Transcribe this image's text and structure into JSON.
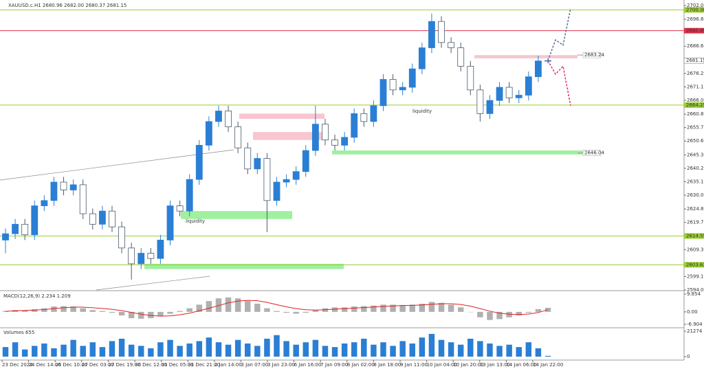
{
  "chart_data": {
    "type": "candlestick",
    "title": "XAUUSD.c.H1 2680.96 2682.00 2680.37 2681.15",
    "open": [
      2613,
      2615.4,
      2619,
      2615,
      2626,
      2628,
      2635,
      2632,
      2634,
      2623,
      2619,
      2624,
      2618,
      2610,
      2604,
      2608,
      2606,
      2613,
      2626,
      2624,
      2636,
      2649,
      2658,
      2662,
      2656,
      2648,
      2640,
      2644,
      2628,
      2635,
      2636,
      2639,
      2647,
      2657,
      2651,
      2649,
      2652,
      2661,
      2658,
      2664,
      2674,
      2670,
      2671,
      2678,
      2686,
      2696,
      2688,
      2686,
      2679,
      2670,
      2661,
      2666,
      2671,
      2667,
      2668,
      2675,
      2681
    ],
    "high": [
      2617.4,
      2621,
      2621,
      2628,
      2630,
      2637,
      2637,
      2636,
      2636,
      2625,
      2626,
      2626,
      2620,
      2612,
      2610,
      2610,
      2615,
      2628,
      2628,
      2638,
      2651,
      2660,
      2664,
      2664,
      2658,
      2650,
      2646,
      2646,
      2637,
      2638,
      2641,
      2649,
      2664,
      2659,
      2653,
      2654,
      2663,
      2663,
      2666,
      2676,
      2676,
      2673,
      2680,
      2688,
      2699,
      2698,
      2690,
      2688,
      2681,
      2672,
      2668,
      2673,
      2673,
      2670,
      2677,
      2683,
      2682
    ],
    "low": [
      2608,
      2613.4,
      2613,
      2613,
      2624,
      2626,
      2630,
      2630,
      2621,
      2617,
      2617,
      2616,
      2608,
      2598,
      2602,
      2604,
      2604,
      2611,
      2622,
      2622,
      2634,
      2647,
      2656,
      2654,
      2646,
      2638,
      2638,
      2616,
      2626,
      2633,
      2634,
      2637,
      2645,
      2649,
      2647,
      2647,
      2650,
      2656,
      2656,
      2662,
      2668,
      2668,
      2669,
      2676,
      2684,
      2686,
      2684,
      2677,
      2668,
      2658,
      2659,
      2664,
      2665,
      2665,
      2666,
      2673,
      2680
    ],
    "close": [
      2615.4,
      2619,
      2615,
      2626,
      2628,
      2635,
      2632,
      2634,
      2623,
      2619,
      2624,
      2618,
      2610,
      2604,
      2608,
      2606,
      2613,
      2626,
      2624,
      2636,
      2649,
      2658,
      2662,
      2656,
      2648,
      2640,
      2644,
      2628,
      2635,
      2636,
      2639,
      2647,
      2657,
      2651,
      2649,
      2652,
      2661,
      2658,
      2664,
      2674,
      2670,
      2671,
      2678,
      2686,
      2696,
      2688,
      2686,
      2679,
      2670,
      2661,
      2666,
      2671,
      2667,
      2668,
      2675,
      2681,
      2681.15
    ],
    "ylim": [
      2594.05,
      2702.05
    ],
    "yticks": [
      2702.05,
      2696.8,
      2686.6,
      2676.25,
      2671.15,
      2666.05,
      2660.8,
      2655.7,
      2650.6,
      2645.35,
      2640.25,
      2635.15,
      2630.05,
      2624.8,
      2619.7,
      2609.35,
      2599.15,
      2594.05
    ],
    "levels": [
      {
        "value": 2700.38,
        "color": "#9acd32"
      },
      {
        "value": 2692.49,
        "color": "#e0304a"
      },
      {
        "value": 2664.25,
        "color": "#9acd32"
      },
      {
        "value": 2614.55,
        "color": "#9acd32"
      },
      {
        "value": 2603.62,
        "color": "#9acd32"
      }
    ],
    "last": 2681.15,
    "price_notes": [
      2683.24,
      2646.04
    ],
    "zones": [
      {
        "top": 2661,
        "bottom": 2659,
        "color": "#f7c6cf"
      },
      {
        "top": 2654,
        "bottom": 2651,
        "color": "#f7c6cf"
      },
      {
        "top": 2624,
        "bottom": 2621,
        "color": "#9ff09f"
      },
      {
        "top": 2647,
        "bottom": 2645.5,
        "color": "#9ff09f"
      },
      {
        "top": 2604,
        "bottom": 2602,
        "color": "#9ff09f"
      },
      {
        "top": 2683.2,
        "bottom": 2682,
        "color": "#f7c6cf"
      }
    ],
    "annotations": [
      "liquidity",
      "liquidity"
    ],
    "forecast": [
      {
        "color": "#5a6e9e",
        "values": [
          2681.15,
          2689,
          2687,
          2701
        ]
      },
      {
        "color": "#e0306a",
        "values": [
          2681.15,
          2676,
          2679,
          2664
        ]
      }
    ],
    "time_labels": [
      "23 Dec 2024",
      "24 Dec 14:00",
      "26 Dec 10:00",
      "27 Dec 03:00",
      "27 Dec 19:00",
      "30 Dec 12:00",
      "31 Dec 05:00",
      "31 Dec 21:00",
      "2 Jan 14:00",
      "3 Jan 07:00",
      "3 Jan 23:00",
      "6 Jan 16:00",
      "7 Jan 09:00",
      "8 Jan 02:00",
      "8 Jan 18:00",
      "9 Jan 11:00",
      "10 Jan 04:00",
      "10 Jan 20:00",
      "13 Jan 13:00",
      "14 Jan 06:00",
      "14 Jan 22:00"
    ],
    "macd": {
      "label": "MACD(12,26,9) 2.234 1.209",
      "histogram": [
        0.5,
        1,
        0.8,
        1.5,
        2,
        3,
        3.2,
        3,
        2,
        1,
        0.5,
        -0.5,
        -2,
        -3.5,
        -3.8,
        -3.5,
        -2.5,
        -1,
        0.5,
        2,
        4,
        6,
        7.5,
        8,
        7.5,
        6,
        4.5,
        2,
        0.5,
        -0.5,
        -1,
        -0.5,
        1,
        2,
        2.5,
        2.5,
        3,
        3.2,
        3.5,
        4,
        4,
        3.8,
        4,
        4.5,
        5.5,
        5,
        4,
        2.5,
        0,
        -3,
        -4.5,
        -4,
        -3,
        -2,
        -0.5,
        1.5,
        2.234
      ],
      "signal": [
        0.3,
        0.6,
        0.8,
        1,
        1.3,
        1.8,
        2.3,
        2.6,
        2.6,
        2.3,
        1.9,
        1.4,
        0.7,
        -0.3,
        -1.3,
        -2,
        -2.4,
        -2.2,
        -1.6,
        -0.7,
        0.6,
        2,
        3.5,
        5,
        6,
        6.4,
        6.2,
        5.3,
        4,
        2.8,
        1.8,
        1.2,
        1,
        1.2,
        1.5,
        1.8,
        2.1,
        2.4,
        2.7,
        3,
        3.3,
        3.5,
        3.6,
        3.8,
        4.2,
        4.5,
        4.5,
        4.1,
        3.2,
        1.8,
        0.4,
        -0.7,
        -1.3,
        -1.5,
        -1.2,
        -0.4,
        1.209
      ],
      "ylim": [
        -6.904,
        9.854
      ],
      "yticks": [
        9.854,
        {
          "value": 0,
          "label": "0.00"
        },
        -6.904
      ]
    },
    "volumes": {
      "label": "Volumes 655",
      "values": [
        8000,
        12000,
        6000,
        9000,
        11000,
        7000,
        10000,
        14000,
        9000,
        12000,
        8000,
        13000,
        15000,
        10000,
        9000,
        7000,
        12000,
        14000,
        9000,
        11000,
        13000,
        16000,
        12000,
        10000,
        14000,
        11000,
        9000,
        15000,
        18000,
        13000,
        10000,
        12000,
        14000,
        9000,
        8000,
        11000,
        12000,
        15000,
        10000,
        12000,
        9000,
        13000,
        11000,
        16000,
        19000,
        14000,
        12000,
        10000,
        15000,
        13000,
        11000,
        9000,
        10000,
        8000,
        12000,
        7000,
        655
      ],
      "ylim": [
        0,
        21274
      ],
      "yticks": [
        21274,
        0
      ]
    }
  }
}
